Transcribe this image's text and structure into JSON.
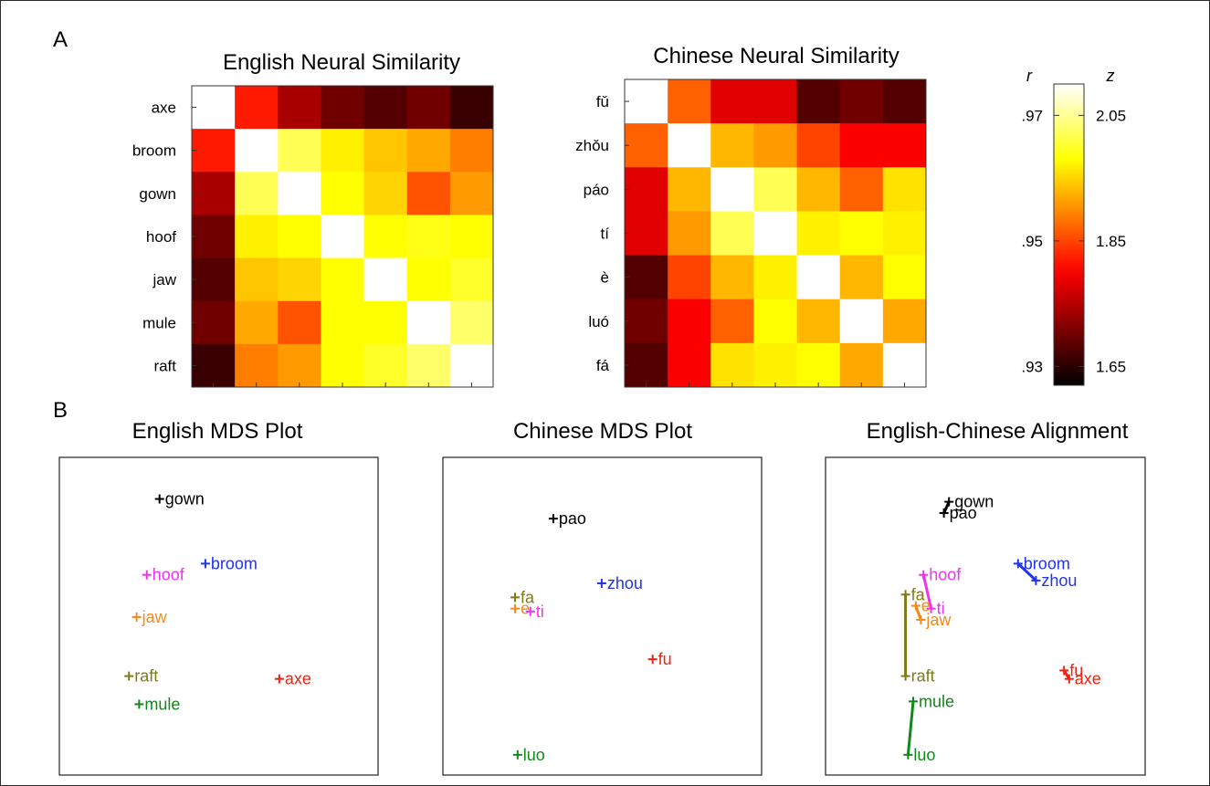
{
  "panels": {
    "a": "A",
    "b": "B"
  },
  "chart_data": [
    {
      "type": "heatmap",
      "title": "English Neural Similarity",
      "labels": [
        "axe",
        "broom",
        "gown",
        "hoof",
        "jaw",
        "mule",
        "raft"
      ],
      "colormap": "hot",
      "z_range": [
        1.62,
        2.1
      ],
      "matrix": [
        [
          2.1,
          1.82,
          1.74,
          1.7,
          1.68,
          1.7,
          1.66
        ],
        [
          1.82,
          2.1,
          2.02,
          1.97,
          1.94,
          1.92,
          1.89
        ],
        [
          1.74,
          2.02,
          2.1,
          1.98,
          1.95,
          1.86,
          1.91
        ],
        [
          1.7,
          1.97,
          1.98,
          2.1,
          1.98,
          1.99,
          1.98
        ],
        [
          1.68,
          1.94,
          1.95,
          1.98,
          2.1,
          1.98,
          2.0
        ],
        [
          1.7,
          1.92,
          1.86,
          1.98,
          1.98,
          2.1,
          2.03
        ],
        [
          1.66,
          1.89,
          1.91,
          1.98,
          2.0,
          2.03,
          2.1
        ]
      ]
    },
    {
      "type": "heatmap",
      "title": "Chinese Neural Similarity",
      "labels": [
        "fǔ",
        "zhǒu",
        "páo",
        "tí",
        "è",
        "luó",
        "fá"
      ],
      "colormap": "hot",
      "z_range": [
        1.62,
        2.1
      ],
      "matrix": [
        [
          2.1,
          1.87,
          1.78,
          1.78,
          1.68,
          1.7,
          1.68
        ],
        [
          1.87,
          2.1,
          1.93,
          1.91,
          1.85,
          1.8,
          1.8
        ],
        [
          1.78,
          1.93,
          2.1,
          2.02,
          1.93,
          1.87,
          1.96
        ],
        [
          1.78,
          1.91,
          2.02,
          2.1,
          1.97,
          1.98,
          1.97
        ],
        [
          1.68,
          1.85,
          1.93,
          1.97,
          2.1,
          1.93,
          1.98
        ],
        [
          1.7,
          1.8,
          1.87,
          1.98,
          1.93,
          2.1,
          1.92
        ],
        [
          1.68,
          1.8,
          1.96,
          1.97,
          1.98,
          1.92,
          2.1
        ]
      ]
    },
    {
      "type": "colorbar",
      "r_label": "r",
      "z_label": "z",
      "range": [
        1.62,
        2.1
      ],
      "r_ticks": [
        {
          "value": 2.05,
          "label": ".97"
        },
        {
          "value": 1.85,
          "label": ".95"
        },
        {
          "value": 1.65,
          "label": ".93"
        }
      ],
      "z_ticks": [
        {
          "value": 2.05,
          "label": "2.05"
        },
        {
          "value": 1.85,
          "label": "1.85"
        },
        {
          "value": 1.65,
          "label": "1.65"
        }
      ]
    },
    {
      "type": "scatter",
      "title": "English MDS Plot",
      "xlim": [
        0,
        1
      ],
      "ylim": [
        0,
        1
      ],
      "points": [
        {
          "label": "gown",
          "x": 0.3,
          "y": 0.93,
          "color": "#000000"
        },
        {
          "label": "broom",
          "x": 0.48,
          "y": 0.7,
          "color": "#2233ee"
        },
        {
          "label": "hoof",
          "x": 0.25,
          "y": 0.66,
          "color": "#ee33ee"
        },
        {
          "label": "jaw",
          "x": 0.21,
          "y": 0.51,
          "color": "#f28a1e"
        },
        {
          "label": "raft",
          "x": 0.18,
          "y": 0.3,
          "color": "#7f7a16"
        },
        {
          "label": "axe",
          "x": 0.77,
          "y": 0.29,
          "color": "#ee2211"
        },
        {
          "label": "mule",
          "x": 0.22,
          "y": 0.2,
          "color": "#11881a"
        }
      ]
    },
    {
      "type": "scatter",
      "title": "Chinese MDS Plot",
      "xlim": [
        0,
        1
      ],
      "ylim": [
        0,
        1
      ],
      "points": [
        {
          "label": "pao",
          "x": 0.34,
          "y": 0.86,
          "color": "#000000"
        },
        {
          "label": "zhou",
          "x": 0.53,
          "y": 0.63,
          "color": "#2233ee"
        },
        {
          "label": "fa",
          "x": 0.19,
          "y": 0.58,
          "color": "#7f7a16"
        },
        {
          "label": "e",
          "x": 0.19,
          "y": 0.54,
          "color": "#f28a1e"
        },
        {
          "label": "ti",
          "x": 0.25,
          "y": 0.53,
          "color": "#ee33ee"
        },
        {
          "label": "fu",
          "x": 0.73,
          "y": 0.36,
          "color": "#ee2211"
        },
        {
          "label": "luo",
          "x": 0.2,
          "y": 0.02,
          "color": "#11881a"
        }
      ]
    },
    {
      "type": "scatter",
      "title": "English-Chinese Alignment",
      "xlim": [
        0,
        1
      ],
      "ylim": [
        0,
        1
      ],
      "points": [
        {
          "label": "gown",
          "x": 0.39,
          "y": 0.92,
          "color": "#000000"
        },
        {
          "label": "pao",
          "x": 0.37,
          "y": 0.88,
          "color": "#000000"
        },
        {
          "label": "broom",
          "x": 0.66,
          "y": 0.7,
          "color": "#2233ee"
        },
        {
          "label": "zhou",
          "x": 0.73,
          "y": 0.64,
          "color": "#2233ee"
        },
        {
          "label": "hoof",
          "x": 0.29,
          "y": 0.66,
          "color": "#ee33ee"
        },
        {
          "label": "ti",
          "x": 0.32,
          "y": 0.54,
          "color": "#ee33ee"
        },
        {
          "label": "fa",
          "x": 0.22,
          "y": 0.59,
          "color": "#7f7a16"
        },
        {
          "label": "raft",
          "x": 0.22,
          "y": 0.3,
          "color": "#7f7a16"
        },
        {
          "label": "e",
          "x": 0.26,
          "y": 0.55,
          "color": "#f28a1e"
        },
        {
          "label": "jaw",
          "x": 0.28,
          "y": 0.5,
          "color": "#f28a1e"
        },
        {
          "label": "fu",
          "x": 0.84,
          "y": 0.32,
          "color": "#ee2211"
        },
        {
          "label": "axe",
          "x": 0.86,
          "y": 0.29,
          "color": "#ee2211"
        },
        {
          "label": "mule",
          "x": 0.25,
          "y": 0.21,
          "color": "#11881a"
        },
        {
          "label": "luo",
          "x": 0.23,
          "y": 0.02,
          "color": "#11881a"
        }
      ],
      "links": [
        [
          "gown",
          "pao"
        ],
        [
          "broom",
          "zhou"
        ],
        [
          "hoof",
          "ti"
        ],
        [
          "fa",
          "raft"
        ],
        [
          "e",
          "jaw"
        ],
        [
          "fu",
          "axe"
        ],
        [
          "mule",
          "luo"
        ]
      ]
    }
  ]
}
